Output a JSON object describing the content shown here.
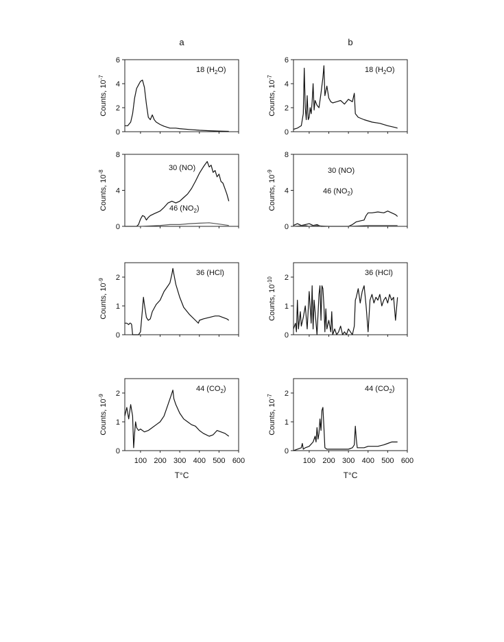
{
  "columns": [
    {
      "label": "a",
      "xlabel": "T°C"
    },
    {
      "label": "b",
      "xlabel": "T°C"
    }
  ],
  "x_ticks": [
    "100",
    "200",
    "300",
    "400",
    "500",
    "600"
  ],
  "chart_data": [
    {
      "type": "line",
      "panel": "a",
      "row": 1,
      "annotation": {
        "base": "18 (H",
        "sub": "2",
        "tail": "O)"
      },
      "ylabel": {
        "base": "Counts, 10",
        "exp": "-7"
      },
      "xlim": [
        20,
        600
      ],
      "ylim": [
        0,
        6
      ],
      "yticks": [
        "0",
        "2",
        "4",
        "6"
      ],
      "series": [
        {
          "x": [
            20,
            35,
            50,
            60,
            70,
            80,
            90,
            100,
            110,
            120,
            130,
            140,
            150,
            160,
            170,
            180,
            200,
            220,
            250,
            280,
            300,
            350,
            400,
            450,
            500,
            550
          ],
          "y": [
            0.5,
            0.5,
            0.8,
            1.5,
            2.8,
            3.6,
            3.9,
            4.2,
            4.3,
            3.7,
            2.3,
            1.2,
            1.0,
            1.4,
            1.0,
            0.8,
            0.6,
            0.45,
            0.3,
            0.3,
            0.25,
            0.18,
            0.12,
            0.08,
            0.05,
            0.03
          ]
        }
      ]
    },
    {
      "type": "line",
      "panel": "a",
      "row": 2,
      "annotation": {
        "base": "30 (NO)",
        "sub": "",
        "tail": ""
      },
      "annotation2": {
        "base": "46 (NO",
        "sub": "2",
        "tail": ")"
      },
      "ylabel": {
        "base": "Counts, 10",
        "exp": "-8"
      },
      "xlim": [
        20,
        600
      ],
      "ylim": [
        0,
        8
      ],
      "yticks": [
        "0",
        "4",
        "8"
      ],
      "series": [
        {
          "x": [
            20,
            50,
            80,
            90,
            100,
            110,
            120,
            130,
            140,
            150,
            170,
            200,
            220,
            240,
            260,
            280,
            300,
            320,
            340,
            360,
            380,
            400,
            420,
            430,
            440,
            450,
            460,
            470,
            480,
            490,
            500,
            510,
            520,
            530,
            540,
            550
          ],
          "y": [
            0,
            0,
            0,
            0.2,
            0.8,
            1.2,
            1.1,
            0.7,
            1.0,
            1.2,
            1.4,
            1.7,
            2.1,
            2.6,
            2.8,
            2.6,
            2.8,
            3.2,
            3.6,
            4.2,
            5.0,
            5.9,
            6.6,
            6.9,
            7.2,
            6.6,
            6.8,
            6.0,
            6.2,
            5.5,
            5.8,
            5.0,
            4.8,
            4.2,
            3.6,
            2.8
          ]
        },
        {
          "x": [
            20,
            100,
            150,
            200,
            250,
            300,
            350,
            400,
            450,
            500,
            550
          ],
          "y": [
            0,
            0,
            0.05,
            0.1,
            0.2,
            0.2,
            0.3,
            0.35,
            0.4,
            0.25,
            0.1
          ]
        }
      ]
    },
    {
      "type": "line",
      "panel": "a",
      "row": 3,
      "annotation": {
        "base": "36 (HCl)",
        "sub": "",
        "tail": ""
      },
      "ylabel": {
        "base": "Counts, 10",
        "exp": "-9"
      },
      "xlim": [
        20,
        600
      ],
      "ylim": [
        0,
        2.5
      ],
      "yticks": [
        "0",
        "1",
        "2"
      ],
      "series": [
        {
          "x": [
            20,
            30,
            40,
            45,
            50,
            55,
            60,
            65,
            70,
            80,
            90,
            100,
            110,
            115,
            120,
            130,
            140,
            150,
            160,
            180,
            200,
            220,
            240,
            250,
            260,
            265,
            270,
            280,
            300,
            320,
            350,
            380,
            395,
            400,
            420,
            450,
            480,
            500,
            520,
            540,
            550
          ],
          "y": [
            0.4,
            0.4,
            0.35,
            0.4,
            0.4,
            0.35,
            0,
            0,
            0,
            0,
            0,
            0.1,
            0.9,
            1.3,
            1.05,
            0.6,
            0.5,
            0.55,
            0.8,
            1.05,
            1.2,
            1.5,
            1.7,
            1.8,
            2.1,
            2.3,
            2.1,
            1.75,
            1.3,
            0.95,
            0.7,
            0.5,
            0.4,
            0.5,
            0.55,
            0.6,
            0.65,
            0.65,
            0.6,
            0.55,
            0.5
          ]
        }
      ]
    },
    {
      "type": "line",
      "panel": "a",
      "row": 4,
      "annotation": {
        "base": "44 (CO",
        "sub": "2",
        "tail": ")"
      },
      "ylabel": {
        "base": "Counts, 10",
        "exp": "-9"
      },
      "xlim": [
        20,
        600
      ],
      "ylim": [
        0,
        2.5
      ],
      "yticks": [
        "0",
        "1",
        "2"
      ],
      "series": [
        {
          "x": [
            20,
            30,
            40,
            50,
            60,
            65,
            70,
            75,
            80,
            90,
            100,
            120,
            140,
            160,
            180,
            200,
            220,
            240,
            255,
            265,
            270,
            280,
            300,
            320,
            340,
            360,
            380,
            400,
            420,
            450,
            470,
            490,
            510,
            530,
            550
          ],
          "y": [
            1.2,
            1.5,
            1.1,
            1.6,
            1.2,
            0.1,
            0.6,
            1.0,
            0.8,
            0.7,
            0.75,
            0.65,
            0.7,
            0.8,
            0.9,
            1.0,
            1.2,
            1.6,
            1.9,
            2.1,
            1.8,
            1.6,
            1.3,
            1.1,
            1.0,
            0.9,
            0.85,
            0.7,
            0.6,
            0.5,
            0.55,
            0.7,
            0.65,
            0.6,
            0.5
          ]
        }
      ]
    },
    {
      "type": "line",
      "panel": "b",
      "row": 1,
      "annotation": {
        "base": "18 (H",
        "sub": "2",
        "tail": "O)"
      },
      "ylabel": {
        "base": "Counts, 10",
        "exp": "-7"
      },
      "xlim": [
        20,
        600
      ],
      "ylim": [
        0,
        6
      ],
      "yticks": [
        "0",
        "2",
        "4",
        "6"
      ],
      "series": [
        {
          "x": [
            20,
            40,
            60,
            70,
            75,
            80,
            85,
            90,
            95,
            100,
            105,
            110,
            115,
            120,
            125,
            130,
            140,
            150,
            160,
            170,
            175,
            180,
            190,
            200,
            210,
            220,
            240,
            260,
            280,
            300,
            320,
            330,
            335,
            340,
            350,
            380,
            420,
            460,
            500,
            540,
            550
          ],
          "y": [
            0.2,
            0.3,
            0.5,
            1.5,
            5.3,
            2.0,
            1.0,
            3.0,
            1.0,
            1.2,
            2.0,
            1.5,
            2.5,
            4.0,
            1.8,
            2.6,
            2.2,
            2.0,
            3.2,
            4.5,
            5.5,
            3.0,
            3.8,
            2.8,
            2.5,
            2.4,
            2.5,
            2.6,
            2.3,
            2.7,
            2.5,
            3.2,
            1.5,
            1.4,
            1.2,
            1.0,
            0.8,
            0.7,
            0.5,
            0.35,
            0.3
          ]
        }
      ]
    },
    {
      "type": "line",
      "panel": "b",
      "row": 2,
      "annotation": {
        "base": "30 (NO)",
        "sub": "",
        "tail": ""
      },
      "annotation2": {
        "base": "46 (NO",
        "sub": "2",
        "tail": ")"
      },
      "ylabel": {
        "base": "Counts, 10",
        "exp": "-9"
      },
      "xlim": [
        20,
        600
      ],
      "ylim": [
        0,
        8
      ],
      "yticks": [
        "0",
        "4",
        "8"
      ],
      "series": [
        {
          "x": [
            20,
            40,
            60,
            80,
            100,
            120,
            140,
            160,
            180,
            200,
            250,
            300,
            320,
            340,
            360,
            380,
            390,
            400,
            420,
            450,
            480,
            500,
            520,
            540,
            550
          ],
          "y": [
            0.1,
            0.3,
            0.1,
            0.2,
            0.3,
            0.1,
            0.2,
            0,
            0,
            0,
            0,
            0,
            0.2,
            0.5,
            0.6,
            0.7,
            1.2,
            1.5,
            1.5,
            1.6,
            1.5,
            1.7,
            1.5,
            1.3,
            1.1
          ]
        },
        {
          "x": [
            20,
            50,
            80,
            100,
            130,
            160,
            200,
            250,
            300,
            350,
            400,
            450,
            500,
            550
          ],
          "y": [
            0,
            0.05,
            0.1,
            0,
            0.1,
            0.05,
            0,
            0,
            0,
            0.05,
            0.1,
            0.1,
            0.1,
            0.1
          ]
        }
      ]
    },
    {
      "type": "line",
      "panel": "b",
      "row": 3,
      "annotation": {
        "base": "36 (HCl)",
        "sub": "",
        "tail": ""
      },
      "ylabel": {
        "base": "Counts, 10",
        "exp": "-10"
      },
      "xlim": [
        20,
        600
      ],
      "ylim": [
        0,
        2.5
      ],
      "yticks": [
        "0",
        "1",
        "2"
      ],
      "series": [
        {
          "x": [
            20,
            30,
            35,
            40,
            45,
            50,
            55,
            60,
            70,
            80,
            90,
            100,
            110,
            115,
            120,
            125,
            130,
            140,
            150,
            155,
            160,
            165,
            170,
            175,
            180,
            185,
            190,
            200,
            210,
            215,
            220,
            230,
            240,
            250,
            260,
            270,
            280,
            290,
            300,
            310,
            320,
            330,
            335,
            340,
            350,
            360,
            370,
            380,
            390,
            400,
            410,
            420,
            430,
            440,
            450,
            460,
            470,
            480,
            490,
            500,
            510,
            520,
            530,
            540,
            550
          ],
          "y": [
            0.2,
            0.4,
            0.1,
            1.2,
            0.2,
            0.5,
            0.8,
            0.3,
            0.6,
            1.0,
            0.2,
            1.5,
            0.4,
            1.7,
            0.2,
            1.2,
            0.8,
            0,
            1.4,
            1.7,
            0.5,
            1.7,
            1.6,
            1.0,
            0.1,
            0.9,
            0.2,
            0.5,
            0.1,
            0.8,
            0,
            0.2,
            0,
            0.1,
            0.3,
            0,
            0.1,
            0,
            0.2,
            0.1,
            0,
            0.3,
            1.2,
            1.3,
            1.6,
            1.1,
            1.5,
            1.7,
            1.0,
            0.1,
            1.2,
            1.4,
            1.1,
            1.3,
            1.2,
            1.4,
            1.0,
            1.2,
            1.3,
            1.1,
            1.4,
            1.2,
            1.3,
            0.5,
            1.3
          ]
        }
      ]
    },
    {
      "type": "line",
      "panel": "b",
      "row": 4,
      "annotation": {
        "base": "44 (CO",
        "sub": "2",
        "tail": ")"
      },
      "ylabel": {
        "base": "Counts, 10",
        "exp": "-7"
      },
      "xlim": [
        20,
        600
      ],
      "ylim": [
        0,
        2.5
      ],
      "yticks": [
        "0",
        "1",
        "2"
      ],
      "series": [
        {
          "x": [
            20,
            40,
            60,
            65,
            70,
            80,
            100,
            120,
            130,
            135,
            140,
            145,
            150,
            155,
            160,
            165,
            170,
            175,
            180,
            190,
            200,
            250,
            300,
            320,
            330,
            335,
            340,
            345,
            350,
            380,
            400,
            450,
            480,
            500,
            520,
            540,
            550
          ],
          "y": [
            0,
            0.05,
            0.1,
            0.25,
            0.05,
            0.1,
            0.15,
            0.3,
            0.5,
            0.3,
            0.8,
            0.4,
            0.6,
            1.1,
            0.7,
            1.4,
            1.5,
            0.8,
            0.1,
            0.05,
            0.05,
            0.05,
            0.05,
            0.1,
            0.2,
            0.85,
            0.4,
            0.1,
            0.1,
            0.1,
            0.15,
            0.15,
            0.2,
            0.25,
            0.3,
            0.3,
            0.3
          ]
        }
      ]
    }
  ]
}
